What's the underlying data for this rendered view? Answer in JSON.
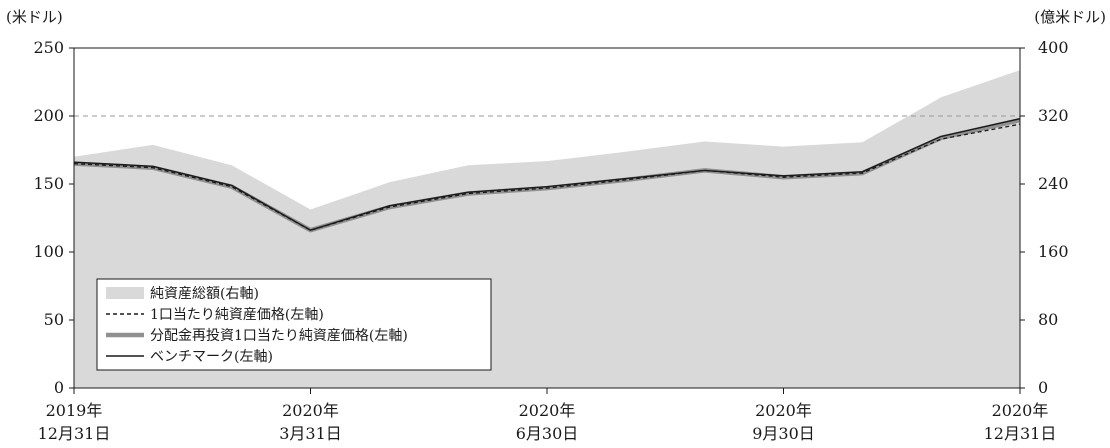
{
  "chart_data": {
    "type": "line",
    "left_unit": "(米ドル)",
    "right_unit": "(億米ドル)",
    "y_left": {
      "min": 0,
      "max": 250,
      "ticks": [
        0,
        50,
        100,
        150,
        200,
        250
      ]
    },
    "y_right": {
      "min": 0,
      "max": 400,
      "ticks": [
        0,
        80,
        160,
        240,
        320,
        400
      ]
    },
    "x_ticks": [
      {
        "line1": "2019年",
        "line2": "12月31日",
        "t": 0
      },
      {
        "line1": "2020年",
        "line2": "3月31日",
        "t": 3
      },
      {
        "line1": "2020年",
        "line2": "6月30日",
        "t": 6
      },
      {
        "line1": "2020年",
        "line2": "9月30日",
        "t": 9
      },
      {
        "line1": "2020年",
        "line2": "12月31日",
        "t": 12
      }
    ],
    "x_range": [
      0,
      12
    ],
    "gridlines_left": [
      200
    ],
    "legend_position": "bottom-left",
    "legend": [
      "純資産総額(右軸)",
      "1口当たり純資産価格(左軸)",
      "分配金再投資1口当たり純資産価格(左軸)",
      "ベンチマーク(左軸)"
    ],
    "series": [
      {
        "axis": "right",
        "style": "area",
        "color": "#d9d9d9",
        "points": [
          [
            0,
            272
          ],
          [
            1,
            286
          ],
          [
            2,
            262
          ],
          [
            3,
            210
          ],
          [
            4,
            242
          ],
          [
            5,
            262
          ],
          [
            6,
            267
          ],
          [
            7,
            278
          ],
          [
            8,
            290
          ],
          [
            9,
            284
          ],
          [
            10,
            289
          ],
          [
            11,
            342
          ],
          [
            12,
            374
          ]
        ]
      },
      {
        "axis": "left",
        "style": "thick",
        "color": "#909090",
        "points": [
          [
            0,
            165
          ],
          [
            1,
            162
          ],
          [
            2,
            148
          ],
          [
            3,
            116
          ],
          [
            4,
            133
          ],
          [
            5,
            143
          ],
          [
            6,
            147
          ],
          [
            7,
            153
          ],
          [
            8,
            160
          ],
          [
            9,
            155
          ],
          [
            10,
            158
          ],
          [
            11,
            184
          ],
          [
            12,
            197
          ]
        ]
      },
      {
        "axis": "left",
        "style": "dashed",
        "color": "#1a1a1a",
        "points": [
          [
            0,
            165
          ],
          [
            1,
            162
          ],
          [
            2,
            148
          ],
          [
            3,
            116
          ],
          [
            4,
            133
          ],
          [
            5,
            143
          ],
          [
            6,
            147
          ],
          [
            7,
            153
          ],
          [
            8,
            160
          ],
          [
            9,
            155
          ],
          [
            10,
            158
          ],
          [
            11,
            183
          ],
          [
            12,
            194
          ]
        ]
      },
      {
        "axis": "left",
        "style": "thin",
        "color": "#1a1a1a",
        "points": [
          [
            0,
            166
          ],
          [
            1,
            163
          ],
          [
            2,
            149
          ],
          [
            3,
            116
          ],
          [
            4,
            134
          ],
          [
            5,
            144
          ],
          [
            6,
            148
          ],
          [
            7,
            154
          ],
          [
            8,
            160
          ],
          [
            9,
            156
          ],
          [
            10,
            159
          ],
          [
            11,
            185
          ],
          [
            12,
            198
          ]
        ]
      }
    ]
  }
}
